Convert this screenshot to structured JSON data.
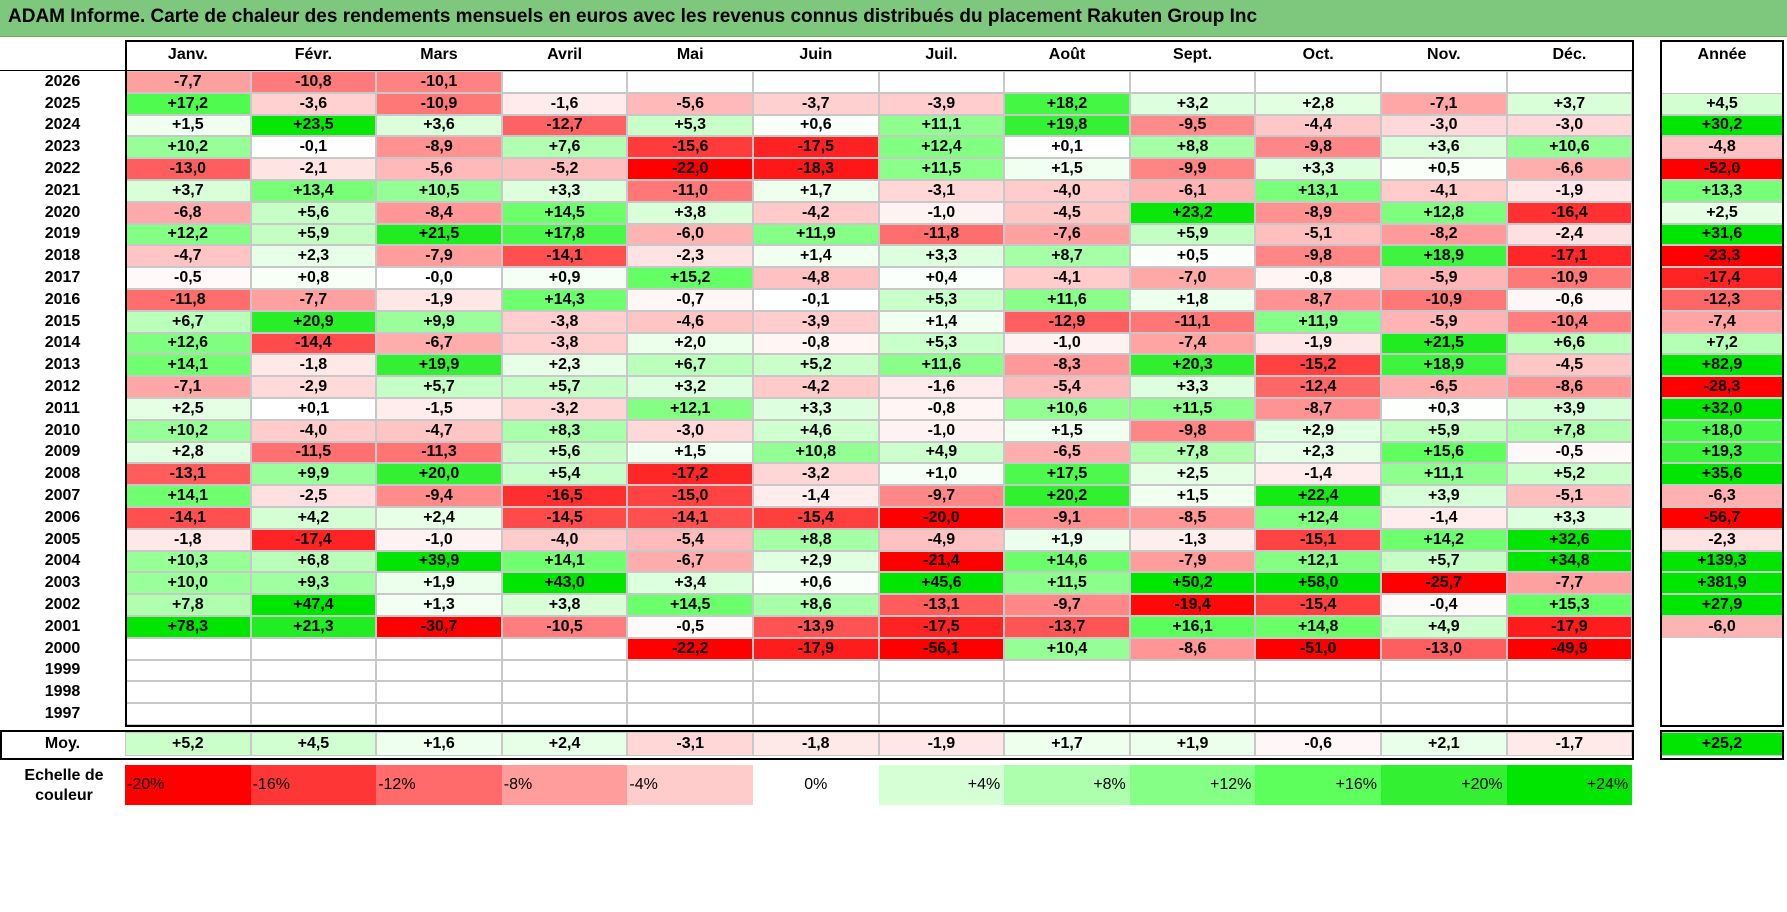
{
  "title": "ADAM Informe. Carte de chaleur des rendements mensuels en euros avec les revenus connus distribués du placement Rakuten Group Inc",
  "chart_data": {
    "type": "heatmap",
    "title": "ADAM Informe. Carte de chaleur des rendements mensuels en euros avec les revenus connus distribués du placement Rakuten Group Inc",
    "months": [
      "Janv.",
      "Févr.",
      "Mars",
      "Avril",
      "Mai",
      "Juin",
      "Juil.",
      "Août",
      "Sept.",
      "Oct.",
      "Nov.",
      "Déc."
    ],
    "year_header": "Année",
    "rows": [
      {
        "year": "2026",
        "values": [
          "-7,7",
          "-10,8",
          "-10,1",
          "",
          "",
          "",
          "",
          "",
          "",
          "",
          "",
          ""
        ],
        "annual": ""
      },
      {
        "year": "2025",
        "values": [
          "+17,2",
          "-3,6",
          "-10,9",
          "-1,6",
          "-5,6",
          "-3,7",
          "-3,9",
          "+18,2",
          "+3,2",
          "+2,8",
          "-7,1",
          "+3,7"
        ],
        "annual": "+4,5"
      },
      {
        "year": "2024",
        "values": [
          "+1,5",
          "+23,5",
          "+3,6",
          "-12,7",
          "+5,3",
          "+0,6",
          "+11,1",
          "+19,8",
          "-9,5",
          "-4,4",
          "-3,0",
          "-3,0"
        ],
        "annual": "+30,2"
      },
      {
        "year": "2023",
        "values": [
          "+10,2",
          "-0,1",
          "-8,9",
          "+7,6",
          "-15,6",
          "-17,5",
          "+12,4",
          "+0,1",
          "+8,8",
          "-9,8",
          "+3,6",
          "+10,6"
        ],
        "annual": "-4,8"
      },
      {
        "year": "2022",
        "values": [
          "-13,0",
          "-2,1",
          "-5,6",
          "-5,2",
          "-22,0",
          "-18,3",
          "+11,5",
          "+1,5",
          "-9,9",
          "+3,3",
          "+0,5",
          "-6,6"
        ],
        "annual": "-52,0"
      },
      {
        "year": "2021",
        "values": [
          "+3,7",
          "+13,4",
          "+10,5",
          "+3,3",
          "-11,0",
          "+1,7",
          "-3,1",
          "-4,0",
          "-6,1",
          "+13,1",
          "-4,1",
          "-1,9"
        ],
        "annual": "+13,3"
      },
      {
        "year": "2020",
        "values": [
          "-6,8",
          "+5,6",
          "-8,4",
          "+14,5",
          "+3,8",
          "-4,2",
          "-1,0",
          "-4,5",
          "+23,2",
          "-8,9",
          "+12,8",
          "-16,4"
        ],
        "annual": "+2,5"
      },
      {
        "year": "2019",
        "values": [
          "+12,2",
          "+5,9",
          "+21,5",
          "+17,8",
          "-6,0",
          "+11,9",
          "-11,8",
          "-7,6",
          "+5,9",
          "-5,1",
          "-8,2",
          "-2,4"
        ],
        "annual": "+31,6"
      },
      {
        "year": "2018",
        "values": [
          "-4,7",
          "+2,3",
          "-7,9",
          "-14,1",
          "-2,3",
          "+1,4",
          "+3,3",
          "+8,7",
          "+0,5",
          "-9,8",
          "+18,9",
          "-17,1"
        ],
        "annual": "-23,3"
      },
      {
        "year": "2017",
        "values": [
          "-0,5",
          "+0,8",
          "-0,0",
          "+0,9",
          "+15,2",
          "-4,8",
          "+0,4",
          "-4,1",
          "-7,0",
          "-0,8",
          "-5,9",
          "-10,9"
        ],
        "annual": "-17,4"
      },
      {
        "year": "2016",
        "values": [
          "-11,8",
          "-7,7",
          "-1,9",
          "+14,3",
          "-0,7",
          "-0,1",
          "+5,3",
          "+11,6",
          "+1,8",
          "-8,7",
          "-10,9",
          "-0,6"
        ],
        "annual": "-12,3"
      },
      {
        "year": "2015",
        "values": [
          "+6,7",
          "+20,9",
          "+9,9",
          "-3,8",
          "-4,6",
          "-3,9",
          "+1,4",
          "-12,9",
          "-11,1",
          "+11,9",
          "-5,9",
          "-10,4"
        ],
        "annual": "-7,4"
      },
      {
        "year": "2014",
        "values": [
          "+12,6",
          "-14,4",
          "-6,7",
          "-3,8",
          "+2,0",
          "-0,8",
          "+5,3",
          "-1,0",
          "-7,4",
          "-1,9",
          "+21,5",
          "+6,6"
        ],
        "annual": "+7,2"
      },
      {
        "year": "2013",
        "values": [
          "+14,1",
          "-1,8",
          "+19,9",
          "+2,3",
          "+6,7",
          "+5,2",
          "+11,6",
          "-8,3",
          "+20,3",
          "-15,2",
          "+18,9",
          "-4,5"
        ],
        "annual": "+82,9"
      },
      {
        "year": "2012",
        "values": [
          "-7,1",
          "-2,9",
          "+5,7",
          "+5,7",
          "+3,2",
          "-4,2",
          "-1,6",
          "-5,4",
          "+3,3",
          "-12,4",
          "-6,5",
          "-8,6"
        ],
        "annual": "-28,3"
      },
      {
        "year": "2011",
        "values": [
          "+2,5",
          "+0,1",
          "-1,5",
          "-3,2",
          "+12,1",
          "+3,3",
          "-0,8",
          "+10,6",
          "+11,5",
          "-8,7",
          "+0,3",
          "+3,9"
        ],
        "annual": "+32,0"
      },
      {
        "year": "2010",
        "values": [
          "+10,2",
          "-4,0",
          "-4,7",
          "+8,3",
          "-3,0",
          "+4,6",
          "-1,0",
          "+1,5",
          "-9,8",
          "+2,9",
          "+5,9",
          "+7,8"
        ],
        "annual": "+18,0"
      },
      {
        "year": "2009",
        "values": [
          "+2,8",
          "-11,5",
          "-11,3",
          "+5,6",
          "+1,5",
          "+10,8",
          "+4,9",
          "-6,5",
          "+7,8",
          "+2,3",
          "+15,6",
          "-0,5"
        ],
        "annual": "+19,3"
      },
      {
        "year": "2008",
        "values": [
          "-13,1",
          "+9,9",
          "+20,0",
          "+5,4",
          "-17,2",
          "-3,2",
          "+1,0",
          "+17,5",
          "+2,5",
          "-1,4",
          "+11,1",
          "+5,2"
        ],
        "annual": "+35,6"
      },
      {
        "year": "2007",
        "values": [
          "+14,1",
          "-2,5",
          "-9,4",
          "-16,5",
          "-15,0",
          "-1,4",
          "-9,7",
          "+20,2",
          "+1,5",
          "+22,4",
          "+3,9",
          "-5,1"
        ],
        "annual": "-6,3"
      },
      {
        "year": "2006",
        "values": [
          "-14,1",
          "+4,2",
          "+2,4",
          "-14,5",
          "-14,1",
          "-15,4",
          "-20,0",
          "-9,1",
          "-8,5",
          "+12,4",
          "-1,4",
          "+3,3"
        ],
        "annual": "-56,7"
      },
      {
        "year": "2005",
        "values": [
          "-1,8",
          "-17,4",
          "-1,0",
          "-4,0",
          "-5,4",
          "+8,8",
          "-4,9",
          "+1,9",
          "-1,3",
          "-15,1",
          "+14,2",
          "+32,6"
        ],
        "annual": "-2,3"
      },
      {
        "year": "2004",
        "values": [
          "+10,3",
          "+6,8",
          "+39,9",
          "+14,1",
          "-6,7",
          "+2,9",
          "-21,4",
          "+14,6",
          "-7,9",
          "+12,1",
          "+5,7",
          "+34,8"
        ],
        "annual": "+139,3"
      },
      {
        "year": "2003",
        "values": [
          "+10,0",
          "+9,3",
          "+1,9",
          "+43,0",
          "+3,4",
          "+0,6",
          "+45,6",
          "+11,5",
          "+50,2",
          "+58,0",
          "-25,7",
          "-7,7"
        ],
        "annual": "+381,9"
      },
      {
        "year": "2002",
        "values": [
          "+7,8",
          "+47,4",
          "+1,3",
          "+3,8",
          "+14,5",
          "+8,6",
          "-13,1",
          "-9,7",
          "-19,4",
          "-15,4",
          "-0,4",
          "+15,3"
        ],
        "annual": "+27,9"
      },
      {
        "year": "2001",
        "values": [
          "+78,3",
          "+21,3",
          "-30,7",
          "-10,5",
          "-0,5",
          "-13,9",
          "-17,5",
          "-13,7",
          "+16,1",
          "+14,8",
          "+4,9",
          "-17,9"
        ],
        "annual": "-6,0"
      },
      {
        "year": "2000",
        "values": [
          "",
          "",
          "",
          "",
          "-22,2",
          "-17,9",
          "-56,1",
          "+10,4",
          "-8,6",
          "-51,0",
          "-13,0",
          "-49,9"
        ],
        "annual": ""
      },
      {
        "year": "1999",
        "values": [
          "",
          "",
          "",
          "",
          "",
          "",
          "",
          "",
          "",
          "",
          "",
          ""
        ],
        "annual": ""
      },
      {
        "year": "1998",
        "values": [
          "",
          "",
          "",
          "",
          "",
          "",
          "",
          "",
          "",
          "",
          "",
          ""
        ],
        "annual": ""
      },
      {
        "year": "1997",
        "values": [
          "",
          "",
          "",
          "",
          "",
          "",
          "",
          "",
          "",
          "",
          "",
          ""
        ],
        "annual": ""
      }
    ],
    "average": {
      "label": "Moy.",
      "values": [
        "+5,2",
        "+4,5",
        "+1,6",
        "+2,4",
        "-3,1",
        "-1,8",
        "-1,9",
        "+1,7",
        "+1,9",
        "-0,6",
        "+2,1",
        "-1,7"
      ],
      "annual": "+25,2"
    },
    "color_scale": {
      "label_line1": "Echelle de",
      "label_line2": "couleur",
      "steps": [
        {
          "label": "-20%",
          "value": -20,
          "color": "#ff0000"
        },
        {
          "label": "-16%",
          "value": -16,
          "color": "#ff3636"
        },
        {
          "label": "-12%",
          "value": -12,
          "color": "#ff6b6b"
        },
        {
          "label": "-8%",
          "value": -8,
          "color": "#ff9c9c"
        },
        {
          "label": "-4%",
          "value": -4,
          "color": "#ffcccc"
        },
        {
          "label": "0%",
          "value": 0,
          "color": "#ffffff"
        },
        {
          "label": "+4%",
          "value": 4,
          "color": "#d6ffd6"
        },
        {
          "label": "+8%",
          "value": 8,
          "color": "#adffad"
        },
        {
          "label": "+12%",
          "value": 12,
          "color": "#85ff85"
        },
        {
          "label": "+16%",
          "value": 16,
          "color": "#5cff5c"
        },
        {
          "label": "+20%",
          "value": 20,
          "color": "#33f033"
        },
        {
          "label": "+24%",
          "value": 24,
          "color": "#00e600"
        }
      ]
    }
  }
}
